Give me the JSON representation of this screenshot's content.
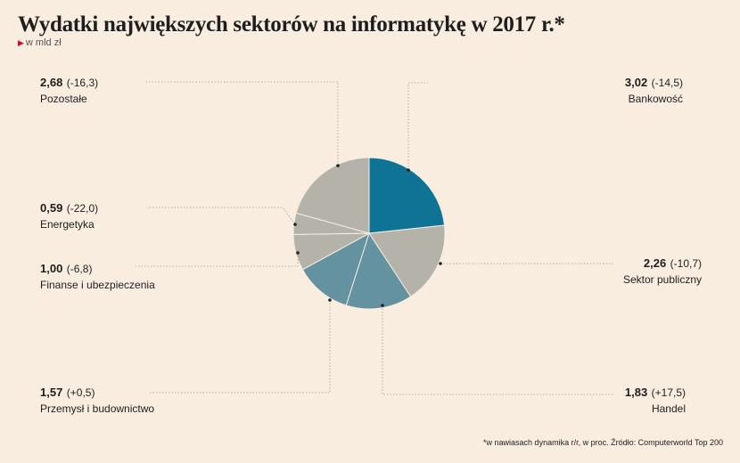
{
  "title": "Wydatki największych sektorów na informatykę w 2017 r.*",
  "unit": "w mld zł",
  "footnote": "*w nawiasach dynamika r/r, w proc. Źródło: Computerworld Top 200",
  "colors": {
    "bankowosc": "#0e7394",
    "gray": "#b5b2aa",
    "blue": "#6592a1",
    "leader": "#999999"
  },
  "chart_data": {
    "type": "pie",
    "unit": "w mld zł",
    "slices": [
      {
        "label": "Bankowość",
        "value": 3.02,
        "change": "(-14,5)",
        "value_text": "3,02",
        "color": "#0e7394"
      },
      {
        "label": "Sektor publiczny",
        "value": 2.26,
        "change": "(-10,7)",
        "value_text": "2,26",
        "color": "#b5b2aa"
      },
      {
        "label": "Handel",
        "value": 1.83,
        "change": "(+17,5)",
        "value_text": "1,83",
        "color": "#6592a1"
      },
      {
        "label": "Przemysł i budownictwo",
        "value": 1.57,
        "change": "(+0,5)",
        "value_text": "1,57",
        "color": "#6592a1"
      },
      {
        "label": "Finanse i ubezpieczenia",
        "value": 1.0,
        "change": "(-6,8)",
        "value_text": "1,00",
        "color": "#b5b2aa"
      },
      {
        "label": "Energetyka",
        "value": 0.59,
        "change": "(-22,0)",
        "value_text": "0,59",
        "color": "#b5b2aa"
      },
      {
        "label": "Pozostałe",
        "value": 2.68,
        "change": "(-16,3)",
        "value_text": "2,68",
        "color": "#b5b2aa"
      }
    ]
  }
}
